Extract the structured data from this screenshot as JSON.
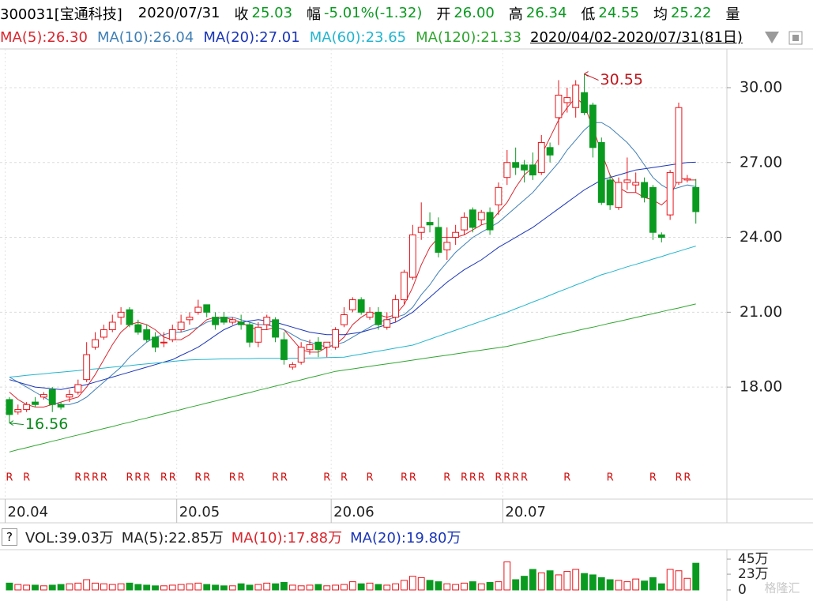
{
  "header": {
    "code": "300031[宝通科技]",
    "date": "2020/07/31",
    "items": [
      {
        "label": "收",
        "value": "25.03"
      },
      {
        "label": "幅",
        "value": "-5.01%(-1.32)"
      },
      {
        "label": "开",
        "value": "26.00"
      },
      {
        "label": "高",
        "value": "26.34"
      },
      {
        "label": "低",
        "value": "24.55"
      },
      {
        "label": "均",
        "value": "25.22"
      }
    ],
    "cut": "量"
  },
  "range_label": "2020/04/02-2020/07/31(81日)",
  "help_button": "?",
  "watermark": "格隆汇",
  "chart_data": [
    {
      "type": "candlestick",
      "categories": [
        "20.04",
        null,
        null,
        null,
        null,
        null,
        null,
        null,
        null,
        null,
        null,
        null,
        null,
        null,
        null,
        null,
        null,
        null,
        null,
        null,
        "20.05",
        null,
        null,
        null,
        null,
        null,
        null,
        null,
        null,
        null,
        null,
        null,
        null,
        null,
        null,
        null,
        null,
        null,
        "20.06",
        null,
        null,
        null,
        null,
        null,
        null,
        null,
        null,
        null,
        null,
        null,
        null,
        null,
        null,
        null,
        null,
        null,
        null,
        null,
        "20.07",
        null,
        null,
        null,
        null,
        null,
        null,
        null,
        null,
        null,
        null,
        null,
        null,
        null,
        null,
        null,
        null,
        null,
        null,
        null,
        null,
        null,
        null
      ],
      "open": [
        17.5,
        17.0,
        17.1,
        17.4,
        17.6,
        17.9,
        17.3,
        17.6,
        17.8,
        18.3,
        19.6,
        20.0,
        20.3,
        20.8,
        21.1,
        20.5,
        20.3,
        20.0,
        19.8,
        19.9,
        20.3,
        20.7,
        21.0,
        21.3,
        20.8,
        20.8,
        20.6,
        20.6,
        20.5,
        19.8,
        20.5,
        20.7,
        19.9,
        18.8,
        19.0,
        19.5,
        19.8,
        19.6,
        19.6,
        20.5,
        21.1,
        21.5,
        20.8,
        21.0,
        20.4,
        20.8,
        21.5,
        22.4,
        24.2,
        24.6,
        24.4,
        23.5,
        24.0,
        24.3,
        25.1,
        24.7,
        25.0,
        25.3,
        26.4,
        27.0,
        26.9,
        26.9,
        26.6,
        27.6,
        28.8,
        29.4,
        29.2,
        29.8,
        29.3,
        27.8,
        26.3,
        25.2,
        26.2,
        26.1,
        26.2,
        26.0,
        24.1,
        24.9,
        26.2,
        26.3,
        26.0
      ],
      "high": [
        17.6,
        17.3,
        17.4,
        17.6,
        17.8,
        18.0,
        17.4,
        17.9,
        18.3,
        19.8,
        20.2,
        20.5,
        20.9,
        21.2,
        21.2,
        20.7,
        20.5,
        20.2,
        20.2,
        20.5,
        20.9,
        21.0,
        21.5,
        21.3,
        21.0,
        21.0,
        20.8,
        20.9,
        20.6,
        20.6,
        20.9,
        20.8,
        20.2,
        19.0,
        19.8,
        19.9,
        20.0,
        19.8,
        20.4,
        21.2,
        21.6,
        21.6,
        21.2,
        21.2,
        21.0,
        21.7,
        22.7,
        24.5,
        25.4,
        25.0,
        24.8,
        24.4,
        24.5,
        25.0,
        25.2,
        25.1,
        25.2,
        26.2,
        27.5,
        27.6,
        27.1,
        27.4,
        28.1,
        27.8,
        30.3,
        30.0,
        30.3,
        30.55,
        29.4,
        28.0,
        26.5,
        26.4,
        27.2,
        26.6,
        26.4,
        26.1,
        24.2,
        26.7,
        29.4,
        26.5,
        26.34
      ],
      "low": [
        16.56,
        16.9,
        17.0,
        17.2,
        17.5,
        17.0,
        17.1,
        17.4,
        17.7,
        18.2,
        19.5,
        19.9,
        20.2,
        20.5,
        20.4,
        20.1,
        19.8,
        19.4,
        19.6,
        19.8,
        20.2,
        20.5,
        20.9,
        20.8,
        20.3,
        20.5,
        20.5,
        20.3,
        19.6,
        19.6,
        20.3,
        19.8,
        18.9,
        18.7,
        18.9,
        19.3,
        19.2,
        19.2,
        19.5,
        20.4,
        21.0,
        20.9,
        20.7,
        20.3,
        20.3,
        20.6,
        21.3,
        22.3,
        23.9,
        24.2,
        23.2,
        23.1,
        23.7,
        24.1,
        24.2,
        24.5,
        24.1,
        24.9,
        26.1,
        26.5,
        26.2,
        26.3,
        26.5,
        27.0,
        27.7,
        29.0,
        28.8,
        28.9,
        27.2,
        25.3,
        25.1,
        25.1,
        25.9,
        25.8,
        25.4,
        23.9,
        23.8,
        24.7,
        26.1,
        26.2,
        24.55
      ],
      "close": [
        16.9,
        17.1,
        17.3,
        17.3,
        17.7,
        17.3,
        17.2,
        17.7,
        18.1,
        19.3,
        19.9,
        20.3,
        20.6,
        21.0,
        20.5,
        20.2,
        19.9,
        19.6,
        19.8,
        20.3,
        20.6,
        20.8,
        21.2,
        21.0,
        20.5,
        20.6,
        20.7,
        20.5,
        19.8,
        20.4,
        20.8,
        20.0,
        19.1,
        18.9,
        19.6,
        19.7,
        19.5,
        19.8,
        20.3,
        20.9,
        21.5,
        21.0,
        21.0,
        20.5,
        20.7,
        21.5,
        22.6,
        24.1,
        24.4,
        24.5,
        23.4,
        23.8,
        24.2,
        24.8,
        24.4,
        25.0,
        24.3,
        26.0,
        27.0,
        26.8,
        26.7,
        26.5,
        27.8,
        27.3,
        29.7,
        29.6,
        30.1,
        29.0,
        27.6,
        25.4,
        25.3,
        26.2,
        26.3,
        26.2,
        25.6,
        24.2,
        24.0,
        26.6,
        29.2,
        26.35,
        25.03
      ],
      "up_color": "#e8151b",
      "down_color": "#0a9a20",
      "ylim": [
        13.51,
        31.55
      ],
      "yticks": [
        {
          "value": 18,
          "label": "18.00"
        },
        {
          "value": 21,
          "label": "21.00"
        },
        {
          "value": 24,
          "label": "24.00"
        },
        {
          "value": 27,
          "label": "27.00"
        },
        {
          "value": 30,
          "label": "30.00"
        }
      ],
      "grid": true,
      "series": [
        {
          "name": "MA(5):26.30",
          "color": "#d9262e",
          "values": [
            17.8,
            17.5,
            17.3,
            17.2,
            17.2,
            17.3,
            17.4,
            17.5,
            17.6,
            18.0,
            18.5,
            19.1,
            19.7,
            20.2,
            20.5,
            20.6,
            20.5,
            20.3,
            20.0,
            19.9,
            19.9,
            20.1,
            20.4,
            20.7,
            20.8,
            20.8,
            20.7,
            20.6,
            20.4,
            20.3,
            20.3,
            20.4,
            20.3,
            19.9,
            19.5,
            19.4,
            19.4,
            19.6,
            19.7,
            20.0,
            20.5,
            20.8,
            21.0,
            20.9,
            20.8,
            20.9,
            21.3,
            22.0,
            22.9,
            23.6,
            24.0,
            24.0,
            24.0,
            24.1,
            24.3,
            24.5,
            24.6,
            25.0,
            25.4,
            26.0,
            26.5,
            26.8,
            27.3,
            28.0,
            28.7,
            29.2,
            29.6,
            29.3,
            28.4,
            27.4,
            26.5,
            26.0,
            25.8,
            25.8,
            25.6,
            25.5,
            25.3,
            25.6,
            26.4,
            26.3,
            26.3
          ]
        },
        {
          "name": "MA(10):26.04",
          "color": "#3f7fb5",
          "values": [
            18.4,
            18.2,
            18.0,
            17.8,
            17.6,
            17.4,
            17.3,
            17.3,
            17.4,
            17.6,
            17.9,
            18.2,
            18.5,
            18.8,
            19.2,
            19.5,
            19.8,
            20.0,
            20.1,
            20.2,
            20.2,
            20.3,
            20.4,
            20.6,
            20.7,
            20.8,
            20.8,
            20.7,
            20.6,
            20.5,
            20.5,
            20.4,
            20.3,
            20.1,
            19.9,
            19.8,
            19.7,
            19.6,
            19.7,
            19.8,
            20.0,
            20.2,
            20.4,
            20.6,
            20.7,
            20.8,
            20.9,
            21.2,
            21.7,
            22.1,
            22.6,
            23.0,
            23.4,
            23.7,
            24.0,
            24.2,
            24.4,
            24.6,
            24.9,
            25.2,
            25.5,
            25.8,
            26.2,
            26.6,
            27.0,
            27.5,
            27.9,
            28.3,
            28.6,
            28.6,
            28.4,
            28.1,
            27.8,
            27.4,
            26.9,
            26.4,
            26.1,
            25.9,
            26.0,
            26.1,
            26.04
          ]
        },
        {
          "name": "MA(20):27.01",
          "color": "#1a35b8",
          "values": [
            18.3,
            18.2,
            18.1,
            18.0,
            17.97,
            17.93,
            17.9,
            17.97,
            18.03,
            18.1,
            18.2,
            18.3,
            18.4,
            18.5,
            18.6,
            18.7,
            18.8,
            18.9,
            19.0,
            19.1,
            19.27,
            19.43,
            19.6,
            19.83,
            20.07,
            20.3,
            20.45,
            20.6,
            20.65,
            20.7,
            20.65,
            20.6,
            20.5,
            20.4,
            20.3,
            20.2,
            20.15,
            20.1,
            20.1,
            20.1,
            20.15,
            20.2,
            20.3,
            20.4,
            20.5,
            20.6,
            20.8,
            21.0,
            21.3,
            21.6,
            21.9,
            22.2,
            22.45,
            22.7,
            22.9,
            23.1,
            23.35,
            23.6,
            23.8,
            24.0,
            24.2,
            24.4,
            24.65,
            24.9,
            25.15,
            25.4,
            25.65,
            25.9,
            26.1,
            26.3,
            26.4,
            26.5,
            26.6,
            26.7,
            26.75,
            26.8,
            26.85,
            26.9,
            26.95,
            27.0,
            27.01
          ]
        },
        {
          "name": "MA(60):23.65",
          "color": "#22b5cf",
          "values": [
            18.4,
            18.43,
            18.47,
            18.5,
            18.53,
            18.57,
            18.6,
            18.63,
            18.66,
            18.7,
            18.73,
            18.76,
            18.8,
            18.83,
            18.86,
            18.9,
            18.93,
            18.96,
            18.99,
            19.03,
            19.06,
            19.09,
            19.1,
            19.11,
            19.12,
            19.13,
            19.13,
            19.14,
            19.14,
            19.15,
            19.15,
            19.15,
            19.15,
            19.16,
            19.16,
            19.17,
            19.17,
            19.18,
            19.19,
            19.2,
            19.26,
            19.32,
            19.38,
            19.44,
            19.5,
            19.56,
            19.62,
            19.68,
            19.8,
            19.92,
            20.04,
            20.16,
            20.28,
            20.4,
            20.52,
            20.64,
            20.76,
            20.88,
            21.0,
            21.14,
            21.27,
            21.41,
            21.54,
            21.68,
            21.82,
            21.95,
            22.09,
            22.22,
            22.36,
            22.5,
            22.6,
            22.71,
            22.82,
            22.92,
            23.02,
            23.13,
            23.23,
            23.34,
            23.44,
            23.55,
            23.65
          ]
        },
        {
          "name": "MA(120):21.33",
          "color": "#2fa52f",
          "values": [
            15.4,
            15.49,
            15.57,
            15.66,
            15.74,
            15.83,
            15.91,
            16.0,
            16.08,
            16.17,
            16.25,
            16.34,
            16.42,
            16.51,
            16.59,
            16.68,
            16.76,
            16.85,
            16.93,
            17.02,
            17.1,
            17.19,
            17.27,
            17.36,
            17.44,
            17.53,
            17.61,
            17.7,
            17.78,
            17.87,
            17.95,
            18.04,
            18.12,
            18.21,
            18.29,
            18.38,
            18.46,
            18.55,
            18.63,
            18.68,
            18.73,
            18.78,
            18.83,
            18.88,
            18.93,
            18.98,
            19.03,
            19.08,
            19.13,
            19.18,
            19.23,
            19.28,
            19.33,
            19.38,
            19.43,
            19.48,
            19.53,
            19.58,
            19.63,
            19.71,
            19.79,
            19.86,
            19.94,
            20.02,
            20.1,
            20.17,
            20.25,
            20.33,
            20.4,
            20.48,
            20.56,
            20.63,
            20.71,
            20.79,
            20.87,
            20.94,
            21.02,
            21.1,
            21.17,
            21.25,
            21.33
          ]
        }
      ],
      "annotations": [
        {
          "value": 30.55,
          "label": "30.55",
          "color": "#c0161c"
        },
        {
          "value": 16.56,
          "label": "16.56",
          "color": "#0a8a1a"
        }
      ],
      "markers": [
        "R",
        null,
        "R",
        null,
        null,
        null,
        null,
        null,
        "R",
        "R",
        "R",
        "R",
        null,
        null,
        "R",
        "R",
        "R",
        null,
        "R",
        "R",
        null,
        null,
        "R",
        "R",
        null,
        null,
        "R",
        "R",
        null,
        null,
        null,
        "R",
        "R",
        null,
        null,
        null,
        null,
        "R",
        null,
        "R",
        null,
        null,
        "R",
        null,
        null,
        null,
        "R",
        "R",
        null,
        null,
        null,
        "R",
        null,
        "R",
        "R",
        "R",
        null,
        "R",
        "R",
        "R",
        "R",
        null,
        null,
        null,
        null,
        "R",
        null,
        null,
        null,
        null,
        "R",
        null,
        null,
        null,
        null,
        "R",
        null,
        null,
        "R",
        "R",
        null
      ],
      "marker_color": "#d01010"
    },
    {
      "type": "bar",
      "title": "VOL:39.03万",
      "values": [
        10,
        8,
        7,
        7,
        6,
        7,
        8,
        9,
        10,
        15,
        10,
        9,
        8,
        9,
        10,
        8,
        7,
        6,
        6,
        7,
        8,
        9,
        10,
        8,
        7,
        6,
        6,
        9,
        7,
        8,
        10,
        9,
        11,
        7,
        6,
        7,
        8,
        6,
        7,
        8,
        12,
        9,
        10,
        8,
        7,
        9,
        14,
        20,
        18,
        14,
        12,
        9,
        8,
        10,
        12,
        9,
        11,
        12,
        41,
        15,
        20,
        30,
        25,
        28,
        22,
        27,
        30,
        24,
        22,
        18,
        15,
        14,
        12,
        16,
        13,
        18,
        9,
        30,
        28,
        17,
        39.03
      ],
      "ylim": [
        0,
        50
      ],
      "yticks": [
        0,
        {
          "value": 23,
          "label": "23万"
        },
        {
          "value": 45,
          "label": "45万"
        }
      ],
      "legend": [
        {
          "name": "MA(5):22.85万",
          "color": "#222222"
        },
        {
          "name": "MA(10):17.88万",
          "color": "#d9262e"
        },
        {
          "name": "MA(20):19.80万",
          "color": "#1a35b8"
        }
      ]
    }
  ]
}
